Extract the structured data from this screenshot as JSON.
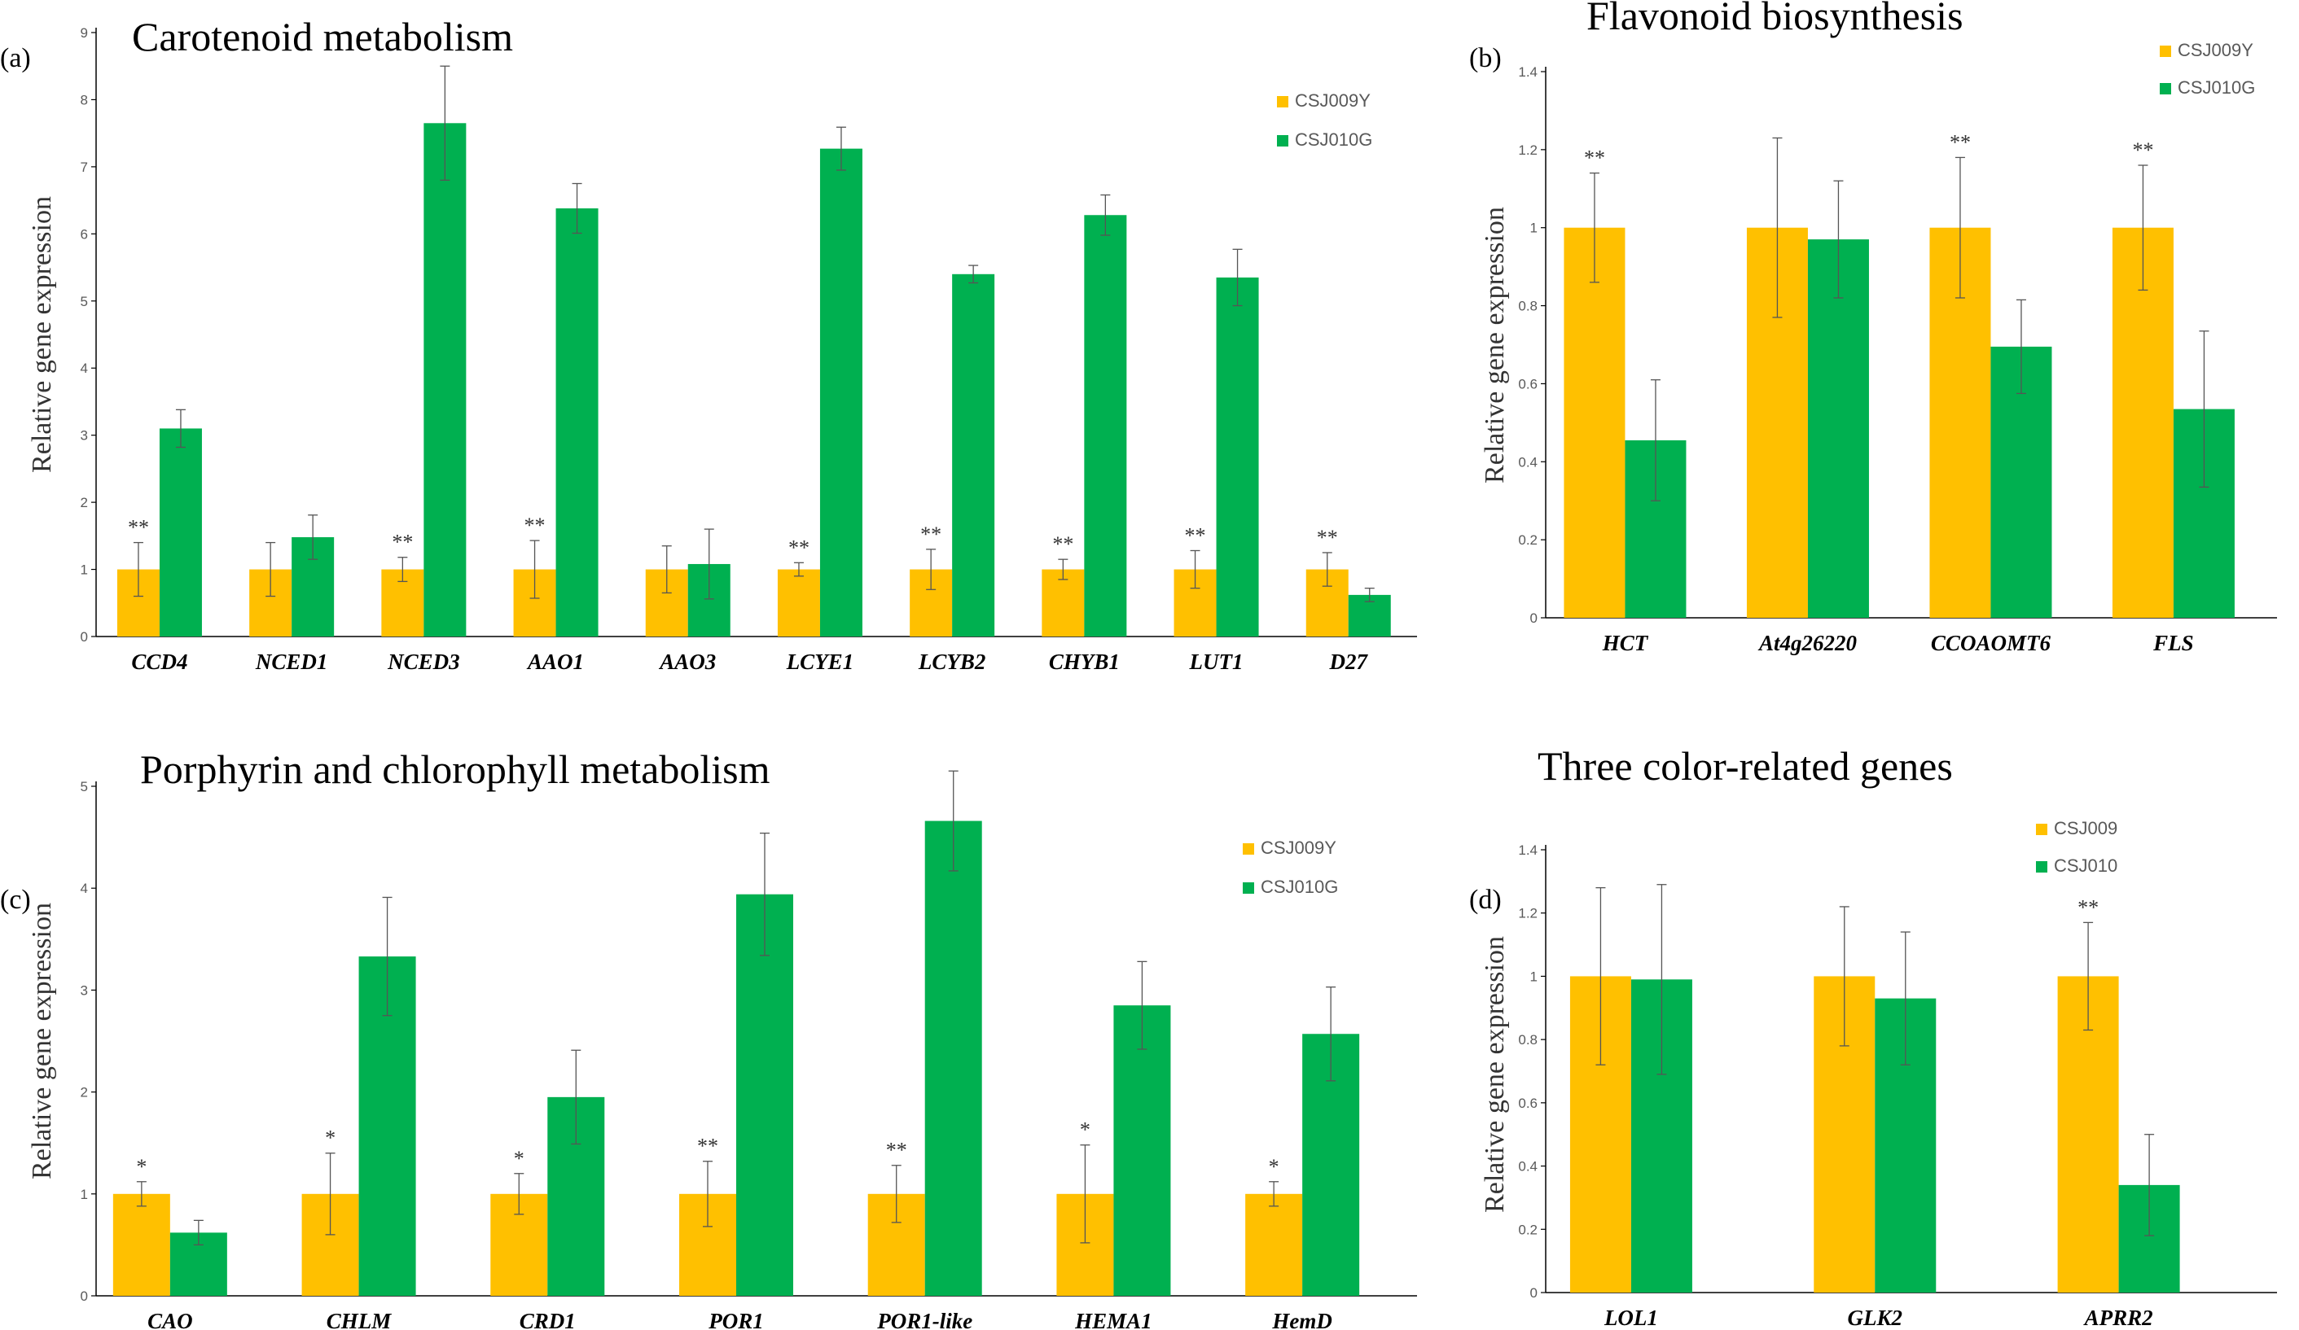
{
  "colors": {
    "series1": "#FFC000",
    "series2": "#00B050"
  },
  "chart_data": [
    {
      "type": "bar",
      "panel_label": "(a)",
      "title": "Carotenoid metabolism",
      "ylabel": "Relative gene expression",
      "ylim": [
        0,
        9
      ],
      "yticks": [
        "0",
        "1",
        "2",
        "3",
        "4",
        "5",
        "6",
        "7",
        "8",
        "9"
      ],
      "legend": "top-right",
      "categories": [
        "CCD4",
        "NCED1",
        "NCED3",
        "AAO1",
        "AAO3",
        "LCYE1",
        "LCYB2",
        "CHYB1",
        "LUT1",
        "D27"
      ],
      "series": [
        {
          "name": "CSJ009Y",
          "values": [
            1,
            1,
            1,
            1,
            1,
            1,
            1,
            1,
            1,
            1
          ],
          "errors": [
            0.4,
            0.4,
            0.18,
            0.43,
            0.35,
            0.1,
            0.3,
            0.15,
            0.28,
            0.25
          ]
        },
        {
          "name": "CSJ010G",
          "values": [
            3.1,
            1.48,
            7.65,
            6.38,
            1.08,
            7.27,
            5.4,
            6.28,
            5.35,
            0.62
          ],
          "errors": [
            0.28,
            0.33,
            0.85,
            0.37,
            0.52,
            0.32,
            0.13,
            0.3,
            0.42,
            0.1
          ]
        }
      ],
      "significance": [
        "**",
        "",
        "**",
        "**",
        "",
        "**",
        "**",
        "**",
        "**",
        "**"
      ]
    },
    {
      "type": "bar",
      "panel_label": "(b)",
      "title": "Flavonoid biosynthesis",
      "ylabel": "Relative gene expression",
      "ylim": [
        0,
        1.4
      ],
      "yticks": [
        "0",
        "0.2",
        "0.4",
        "0.6",
        "0.8",
        "1",
        "1.2",
        "1.4"
      ],
      "legend": "top-right",
      "categories": [
        "HCT",
        "At4g26220",
        "CCOAOMT6",
        "FLS"
      ],
      "series": [
        {
          "name": "CSJ009Y",
          "values": [
            1,
            1,
            1,
            1
          ],
          "errors": [
            0.14,
            0.23,
            0.18,
            0.16
          ]
        },
        {
          "name": "CSJ010G",
          "values": [
            0.455,
            0.97,
            0.695,
            0.535
          ],
          "errors": [
            0.155,
            0.15,
            0.12,
            0.2
          ]
        }
      ],
      "significance": [
        "**",
        "",
        "**",
        "**"
      ]
    },
    {
      "type": "bar",
      "panel_label": "(c)",
      "title": "Porphyrin and chlorophyll metabolism",
      "ylabel": "Relative gene expression",
      "ylim": [
        0,
        5
      ],
      "yticks": [
        "0",
        "1",
        "2",
        "3",
        "4",
        "5"
      ],
      "legend": "top-right",
      "categories": [
        "CAO",
        "CHLM",
        "CRD1",
        "POR1",
        "POR1-like",
        "HEMA1",
        "HemD"
      ],
      "series": [
        {
          "name": "CSJ009Y",
          "values": [
            1,
            1,
            1,
            1,
            1,
            1,
            1
          ],
          "errors": [
            0.12,
            0.4,
            0.2,
            0.32,
            0.28,
            0.48,
            0.12
          ]
        },
        {
          "name": "CSJ010G",
          "values": [
            0.62,
            3.33,
            1.95,
            3.94,
            4.66,
            2.85,
            2.57
          ],
          "errors": [
            0.12,
            0.58,
            0.46,
            0.6,
            0.49,
            0.43,
            0.46
          ]
        }
      ],
      "significance": [
        "*",
        "*",
        "*",
        "**",
        "**",
        "*",
        "*"
      ]
    },
    {
      "type": "bar",
      "panel_label": "(d)",
      "title": "Three color-related genes",
      "ylabel": "Relative gene expression",
      "ylim": [
        0,
        1.4
      ],
      "yticks": [
        "0",
        "0.2",
        "0.4",
        "0.6",
        "0.8",
        "1",
        "1.2",
        "1.4"
      ],
      "legend": "top-right",
      "categories": [
        "LOL1",
        "GLK2",
        "APRR2"
      ],
      "series": [
        {
          "name": "CSJ009",
          "values": [
            1,
            1,
            1
          ],
          "errors": [
            0.28,
            0.22,
            0.17
          ]
        },
        {
          "name": "CSJ010",
          "values": [
            0.99,
            0.93,
            0.34
          ],
          "errors": [
            0.3,
            0.21,
            0.16
          ]
        }
      ],
      "significance": [
        "",
        "",
        "**"
      ]
    }
  ]
}
